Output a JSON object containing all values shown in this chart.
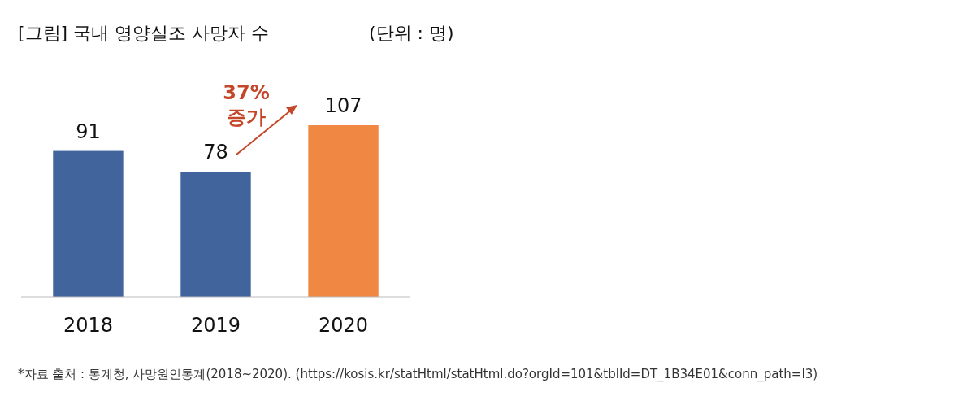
{
  "chart_data": {
    "type": "bar",
    "title": "[그림] 국내 영양실조 사망자 수",
    "subtitle": "(단위 : 명)",
    "categories": [
      "2018",
      "2019",
      "2020"
    ],
    "values": [
      91,
      78,
      107
    ],
    "colors": [
      "#41649d",
      "#41649d",
      "#f08844"
    ],
    "data_labels": true,
    "annotations": [
      "37%\n증가",
      "*자료 출처 : 통계청, 사망원인통계(2018~2020).  (https://kosis.kr/statHtml/statHtml.do?orgId=101&tblId=DT_1B34E01&conn_path=I3)"
    ]
  }
}
